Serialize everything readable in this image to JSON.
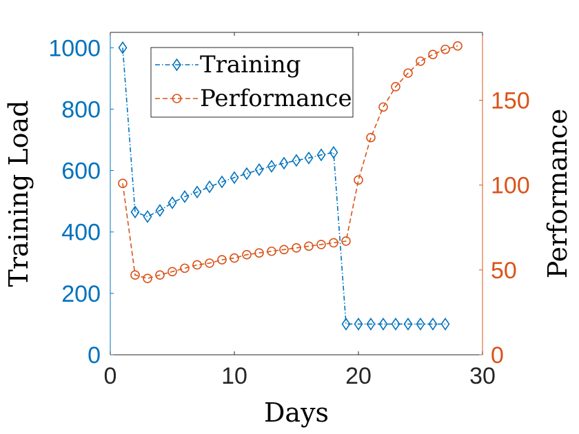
{
  "chart_data": {
    "type": "line",
    "xlabel": "Days",
    "ylabel_left": "Training Load",
    "ylabel_right": "Performance",
    "xlim": [
      0,
      30
    ],
    "ylim_left": [
      0,
      1050
    ],
    "ylim_right": [
      0,
      190
    ],
    "x_ticks": [
      "0",
      "10",
      "20",
      "30"
    ],
    "y_left_ticks": [
      "0",
      "200",
      "400",
      "600",
      "800",
      "1000"
    ],
    "y_right_ticks": [
      "0",
      "50",
      "100",
      "150"
    ],
    "colors": {
      "training": "#0072BD",
      "performance": "#D95319",
      "axis": "#262626"
    },
    "legend": {
      "position": "top-left",
      "entries": [
        "Training",
        "Performance"
      ]
    },
    "series": [
      {
        "name": "Training",
        "axis": "left",
        "marker": "diamond",
        "line_style": "dash-dot",
        "x": [
          1,
          2,
          3,
          4,
          5,
          6,
          7,
          8,
          9,
          10,
          11,
          12,
          13,
          14,
          15,
          16,
          17,
          18,
          19,
          20,
          21,
          22,
          23,
          24,
          25,
          26,
          27
        ],
        "values": [
          1000,
          465,
          450,
          470,
          495,
          515,
          530,
          547,
          563,
          577,
          590,
          603,
          614,
          624,
          633,
          641,
          651,
          659,
          100,
          100,
          100,
          100,
          100,
          100,
          100,
          100,
          100
        ]
      },
      {
        "name": "Performance",
        "axis": "right",
        "marker": "circle",
        "line_style": "dashed",
        "x": [
          1,
          2,
          3,
          4,
          5,
          6,
          7,
          8,
          9,
          10,
          11,
          12,
          13,
          14,
          15,
          16,
          17,
          18,
          19,
          20,
          21,
          22,
          23,
          24,
          25,
          26,
          27,
          28
        ],
        "values": [
          101,
          47,
          45,
          47,
          49,
          51,
          53,
          54,
          56,
          57,
          59,
          60,
          61,
          62,
          63,
          64,
          65,
          66,
          67,
          103,
          128,
          146,
          158,
          166,
          173,
          177,
          180,
          182
        ]
      }
    ]
  }
}
